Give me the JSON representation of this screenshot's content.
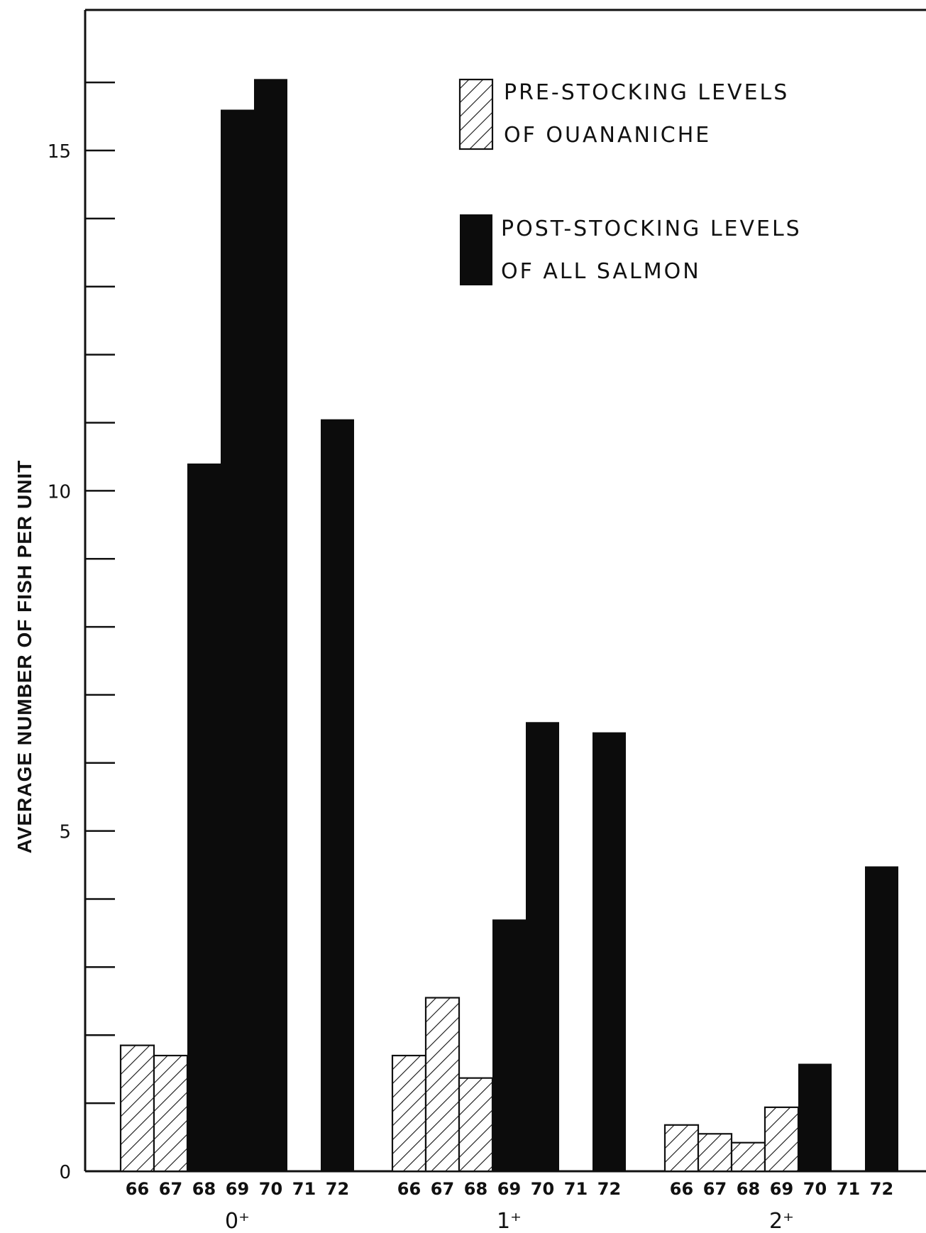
{
  "chart_data": {
    "type": "bar",
    "ylabel": "AVERAGE NUMBER OF FISH PER UNIT",
    "ylim": [
      0,
      16
    ],
    "yticks": [
      0,
      5,
      10,
      15
    ],
    "years": [
      "66",
      "67",
      "68",
      "69",
      "70",
      "71",
      "72"
    ],
    "groups": [
      {
        "label": "0⁺",
        "bars": [
          {
            "year": "66",
            "value": 1.85,
            "series": "pre"
          },
          {
            "year": "67",
            "value": 1.7,
            "series": "pre"
          },
          {
            "year": "68",
            "value": 10.4,
            "series": "post"
          },
          {
            "year": "69",
            "value": 15.6,
            "series": "post"
          },
          {
            "year": "70",
            "value": 16.05,
            "series": "post"
          },
          {
            "year": "71",
            "value": null,
            "series": "none"
          },
          {
            "year": "72",
            "value": 11.05,
            "series": "post"
          }
        ]
      },
      {
        "label": "1⁺",
        "bars": [
          {
            "year": "66",
            "value": 1.7,
            "series": "pre"
          },
          {
            "year": "67",
            "value": 2.55,
            "series": "pre"
          },
          {
            "year": "68",
            "value": 1.37,
            "series": "pre"
          },
          {
            "year": "69",
            "value": 3.7,
            "series": "post"
          },
          {
            "year": "70",
            "value": 6.6,
            "series": "post"
          },
          {
            "year": "71",
            "value": null,
            "series": "none"
          },
          {
            "year": "72",
            "value": 6.45,
            "series": "post"
          }
        ]
      },
      {
        "label": "2⁺",
        "bars": [
          {
            "year": "66",
            "value": 0.68,
            "series": "pre"
          },
          {
            "year": "67",
            "value": 0.55,
            "series": "pre"
          },
          {
            "year": "68",
            "value": 0.42,
            "series": "pre"
          },
          {
            "year": "69",
            "value": 0.94,
            "series": "pre"
          },
          {
            "year": "70",
            "value": 1.58,
            "series": "post"
          },
          {
            "year": "71",
            "value": null,
            "series": "none"
          },
          {
            "year": "72",
            "value": 4.48,
            "series": "post"
          }
        ]
      }
    ],
    "legend": {
      "pre": {
        "line1": "PRE-STOCKING  LEVELS",
        "line2": "OF  OUANANICHE"
      },
      "post": {
        "line1": "POST-STOCKING  LEVELS",
        "line2": "OF  ALL  SALMON"
      },
      "placement": "top-right"
    },
    "colors": {
      "post": "#0c0c0c",
      "pre_stroke": "#111111",
      "pre_fill": "#ffffff",
      "axis": "#111111"
    }
  }
}
